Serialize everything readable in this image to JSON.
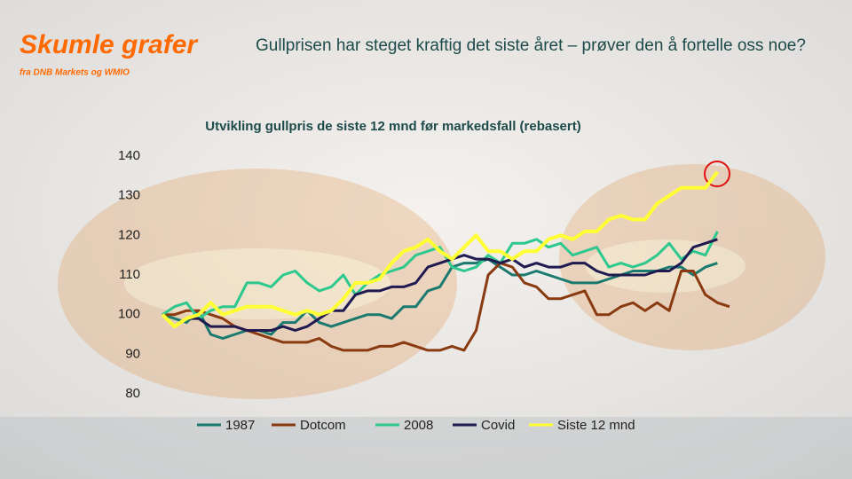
{
  "header": {
    "title": "Skumle grafer",
    "subtitle": "fra DNB Markets og WMIO",
    "headline": "Gullprisen har steget kraftig det siste året – prøver den å fortelle oss noe?"
  },
  "chart_data": {
    "type": "line",
    "title": "Utvikling gullpris de siste 12 mnd før markedsfall (rebasert)",
    "ylim": [
      80,
      140
    ],
    "yticks": [
      80,
      90,
      100,
      110,
      120,
      130,
      140
    ],
    "grid": false,
    "legend": "bottom",
    "series": [
      {
        "name": "1987",
        "color": "#1b7a70",
        "values": [
          100,
          99,
          98,
          101,
          95,
          94,
          95,
          96,
          96,
          95,
          98,
          98,
          101,
          98,
          97,
          98,
          99,
          100,
          100,
          99,
          102,
          102,
          106,
          107,
          112,
          113,
          113,
          114,
          112,
          110,
          110,
          111,
          110,
          109,
          108,
          108,
          108,
          109,
          110,
          111,
          111,
          111,
          112,
          112,
          110,
          112,
          113,
          null
        ]
      },
      {
        "name": "Dotcom",
        "color": "#8a3a10",
        "values": [
          100,
          100,
          101,
          101,
          100,
          99,
          97,
          96,
          95,
          94,
          93,
          93,
          93,
          94,
          92,
          91,
          91,
          91,
          92,
          92,
          93,
          92,
          91,
          91,
          92,
          91,
          96,
          110,
          113,
          112,
          108,
          107,
          104,
          104,
          105,
          106,
          100,
          100,
          102,
          103,
          101,
          103,
          101,
          111,
          111,
          105,
          103,
          102
        ]
      },
      {
        "name": "2008",
        "color": "#2ec88f",
        "values": [
          100,
          102,
          103,
          99,
          101,
          102,
          102,
          108,
          108,
          107,
          110,
          111,
          108,
          106,
          107,
          110,
          105,
          108,
          110,
          111,
          112,
          115,
          116,
          117,
          112,
          111,
          112,
          115,
          113,
          118,
          118,
          119,
          117,
          118,
          115,
          116,
          117,
          112,
          113,
          112,
          113,
          115,
          118,
          114,
          116,
          115,
          121,
          null
        ]
      },
      {
        "name": "Covid",
        "color": "#1f1a4f",
        "values": [
          100,
          97,
          99,
          99,
          97,
          97,
          97,
          96,
          96,
          96,
          97,
          96,
          97,
          99,
          101,
          101,
          105,
          106,
          106,
          107,
          107,
          108,
          112,
          113,
          114,
          115,
          114,
          114,
          113,
          114,
          112,
          113,
          112,
          112,
          113,
          113,
          111,
          110,
          110,
          110,
          110,
          111,
          111,
          113,
          117,
          118,
          119,
          null
        ]
      },
      {
        "name": "Siste 12 mnd",
        "color": "#ffff33",
        "values": [
          100,
          97,
          99,
          100,
          103,
          100,
          101,
          102,
          102,
          102,
          101,
          100,
          101,
          100,
          101,
          104,
          108,
          108,
          109,
          113,
          116,
          117,
          119,
          116,
          114,
          117,
          120,
          116,
          116,
          114,
          116,
          116,
          119,
          120,
          119,
          121,
          121,
          124,
          125,
          124,
          124,
          128,
          130,
          132,
          132,
          132,
          136,
          null
        ]
      }
    ]
  }
}
